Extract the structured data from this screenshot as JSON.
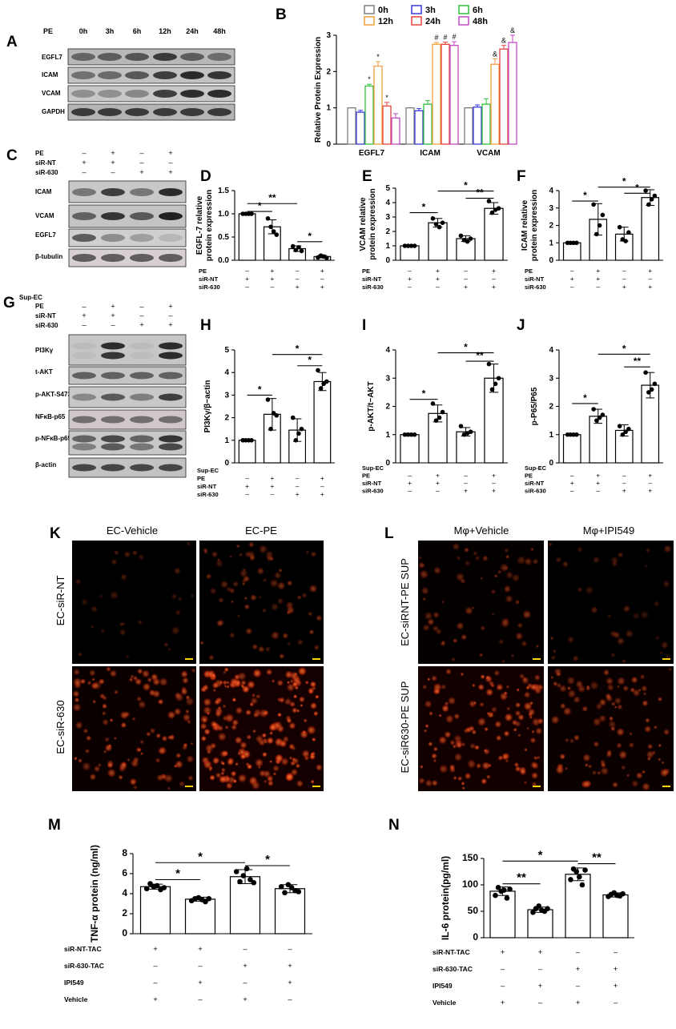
{
  "panel_letters": [
    "A",
    "B",
    "C",
    "D",
    "E",
    "F",
    "G",
    "H",
    "I",
    "J",
    "K",
    "L",
    "M",
    "N"
  ],
  "panelA": {
    "row_header": "PE",
    "timepoints": [
      "0h",
      "3h",
      "6h",
      "12h",
      "24h",
      "48h"
    ],
    "bands": [
      "EGFL7",
      "ICAM",
      "VCAM",
      "GAPDH"
    ]
  },
  "panelC": {
    "conditions": [
      {
        "label": "PE",
        "signs": [
          "–",
          "+",
          "–",
          "+"
        ]
      },
      {
        "label": "siR-NT",
        "signs": [
          "+",
          "+",
          "–",
          "–"
        ]
      },
      {
        "label": "siR-630",
        "signs": [
          "–",
          "–",
          "+",
          "+"
        ]
      }
    ],
    "bands": [
      "ICAM",
      "VCAM",
      "EGFL7",
      "β-tubulin"
    ]
  },
  "panelG": {
    "conditions": [
      {
        "label": "Sup-EC",
        "signs": [
          "",
          "",
          "",
          ""
        ]
      },
      {
        "label": "PE",
        "signs": [
          "–",
          "+",
          "–",
          "+"
        ]
      },
      {
        "label": "siR-NT",
        "signs": [
          "+",
          "+",
          "–",
          "–"
        ]
      },
      {
        "label": "siR-630",
        "signs": [
          "–",
          "–",
          "+",
          "+"
        ]
      }
    ],
    "bands": [
      "PI3Kγ",
      "t-AKT",
      "p-AKT-S473",
      "NFκB-p65",
      "p-NFκB-p65",
      "β-actin"
    ]
  },
  "panelK": {
    "col_titles": [
      "EC-Vehicle",
      "EC-PE"
    ],
    "row_titles": [
      "EC-siR-NT",
      "EC-siR-630"
    ]
  },
  "panelL": {
    "col_titles": [
      "Mφ+Vehicle",
      "Mφ+IPI549"
    ],
    "row_titles": [
      "EC-siRNT-PE SUP",
      "EC-siR630-PE SUP"
    ]
  },
  "chart_data": [
    {
      "panel": "B",
      "type": "bar",
      "ylabel": "Relative Protein Expression",
      "ylim": [
        0,
        3
      ],
      "yticks": [
        0,
        1,
        2,
        3
      ],
      "categories": [
        "EGFL7",
        "ICAM",
        "VCAM"
      ],
      "series": [
        {
          "name": "0h",
          "color": "#7f7f7f",
          "values": [
            1.0,
            1.0,
            1.0
          ],
          "err": [
            0,
            0,
            0
          ],
          "mark": [
            "",
            "",
            ""
          ]
        },
        {
          "name": "3h",
          "color": "#3a3ad8",
          "values": [
            0.88,
            0.92,
            1.02
          ],
          "err": [
            0.05,
            0.06,
            0.06
          ],
          "mark": [
            "",
            "",
            ""
          ]
        },
        {
          "name": "6h",
          "color": "#2fbf3a",
          "values": [
            1.6,
            1.1,
            1.1
          ],
          "err": [
            0.05,
            0.1,
            0.15
          ],
          "mark": [
            "*",
            "",
            ""
          ]
        },
        {
          "name": "12h",
          "color": "#f0a03c",
          "values": [
            2.15,
            2.75,
            2.2
          ],
          "err": [
            0.12,
            0.05,
            0.15
          ],
          "mark": [
            "*",
            "#",
            "&"
          ]
        },
        {
          "name": "24h",
          "color": "#e8413c",
          "values": [
            1.05,
            2.75,
            2.62
          ],
          "err": [
            0.1,
            0.06,
            0.1
          ],
          "mark": [
            "*",
            "#",
            "&"
          ]
        },
        {
          "name": "48h",
          "color": "#c24bc2",
          "values": [
            0.72,
            2.72,
            2.8
          ],
          "err": [
            0.12,
            0.1,
            0.2
          ],
          "mark": [
            "",
            "#",
            "&"
          ]
        }
      ],
      "legend_position": "top"
    },
    {
      "panel": "D",
      "type": "bar",
      "ylabel": [
        "EGFL-7 relative",
        "protein expression"
      ],
      "ylim": [
        0,
        1.5
      ],
      "yticks": [
        "0.0",
        "0.5",
        "1.0",
        "1.5"
      ],
      "values": [
        1.0,
        0.72,
        0.25,
        0.08
      ],
      "err": [
        0.01,
        0.15,
        0.06,
        0.03
      ],
      "points": [
        [
          1.0,
          1.0,
          1.0,
          1.0
        ],
        [
          0.9,
          0.72,
          0.62,
          0.55
        ],
        [
          0.3,
          0.22,
          0.28,
          0.2
        ],
        [
          0.06,
          0.1,
          0.08,
          0.05
        ]
      ],
      "sig": [
        {
          "from": 0,
          "to": 1,
          "label": "*",
          "level": 1.05
        },
        {
          "from": 0,
          "to": 2,
          "label": "**",
          "level": 1.22
        },
        {
          "from": 2,
          "to": 3,
          "label": "*",
          "level": 0.4
        }
      ],
      "rows": [
        {
          "label": "PE",
          "signs": [
            "–",
            "+",
            "–",
            "+"
          ]
        },
        {
          "label": "siR-NT",
          "signs": [
            "+",
            "+",
            "–",
            "–"
          ]
        },
        {
          "label": "siR-630",
          "signs": [
            "–",
            "–",
            "+",
            "+"
          ]
        }
      ]
    },
    {
      "panel": "E",
      "type": "bar",
      "ylabel": [
        "VCAM relative",
        "protein expression"
      ],
      "ylim": [
        0,
        5
      ],
      "yticks": [
        "0",
        "1",
        "2",
        "3",
        "4",
        "5"
      ],
      "values": [
        1.0,
        2.6,
        1.5,
        3.6
      ],
      "err": [
        0.01,
        0.3,
        0.2,
        0.4
      ],
      "points": [
        [
          1,
          1,
          1,
          1
        ],
        [
          2.9,
          2.5,
          2.3,
          2.6
        ],
        [
          1.7,
          1.4,
          1.3,
          1.5
        ],
        [
          4.1,
          3.3,
          3.5,
          3.6
        ]
      ],
      "sig": [
        {
          "from": 0,
          "to": 1,
          "label": "*",
          "level": 3.3
        },
        {
          "from": 2,
          "to": 3,
          "label": "**",
          "level": 4.3
        },
        {
          "from": 1,
          "to": 3,
          "label": "*",
          "level": 4.8
        }
      ],
      "rows": [
        {
          "label": "PE",
          "signs": [
            "–",
            "+",
            "–",
            "+"
          ]
        },
        {
          "label": "siR-NT",
          "signs": [
            "+",
            "+",
            "–",
            "–"
          ]
        },
        {
          "label": "siR-630",
          "signs": [
            "–",
            "–",
            "+",
            "+"
          ]
        }
      ]
    },
    {
      "panel": "F",
      "type": "bar",
      "ylabel": [
        "ICAM relative",
        "protein expression"
      ],
      "ylim": [
        0,
        4
      ],
      "yticks": [
        "0",
        "1",
        "2",
        "3",
        "4"
      ],
      "values": [
        1.0,
        2.35,
        1.5,
        3.6
      ],
      "err": [
        0.01,
        0.9,
        0.4,
        0.45
      ],
      "points": [
        [
          1,
          1,
          1,
          1
        ],
        [
          3.2,
          1.5,
          2.0,
          2.6
        ],
        [
          1.9,
          1.2,
          1.1,
          1.6
        ],
        [
          4.0,
          3.2,
          3.5,
          3.7
        ]
      ],
      "sig": [
        {
          "from": 0,
          "to": 1,
          "label": "*",
          "level": 3.4
        },
        {
          "from": 2,
          "to": 3,
          "label": "*",
          "level": 3.85
        },
        {
          "from": 1,
          "to": 3,
          "label": "*",
          "level": 4.2
        }
      ],
      "rows": [
        {
          "label": "PE",
          "signs": [
            "–",
            "+",
            "–",
            "+"
          ]
        },
        {
          "label": "siR-NT",
          "signs": [
            "+",
            "+",
            "–",
            "–"
          ]
        },
        {
          "label": "siR-630",
          "signs": [
            "–",
            "–",
            "+",
            "+"
          ]
        }
      ]
    },
    {
      "panel": "H",
      "type": "bar",
      "ylabel": [
        "PI3Kγ/β−actin"
      ],
      "ylim": [
        0,
        5
      ],
      "yticks": [
        "0",
        "1",
        "2",
        "3",
        "4",
        "5"
      ],
      "values": [
        1.0,
        2.15,
        1.45,
        3.6
      ],
      "err": [
        0.01,
        0.7,
        0.5,
        0.4
      ],
      "points": [
        [
          1,
          1,
          1,
          1
        ],
        [
          2.8,
          1.5,
          2.2,
          2.1
        ],
        [
          2.0,
          1.0,
          1.3,
          1.5
        ],
        [
          4.1,
          3.3,
          3.5,
          3.6
        ]
      ],
      "sig": [
        {
          "from": 0,
          "to": 1,
          "label": "*",
          "level": 3.0
        },
        {
          "from": 2,
          "to": 3,
          "label": "*",
          "level": 4.3
        },
        {
          "from": 1,
          "to": 3,
          "label": "*",
          "level": 4.8
        }
      ],
      "rows": [
        {
          "label": "Sup-EC",
          "signs": [
            "",
            "",
            "",
            ""
          ]
        },
        {
          "label": "PE",
          "signs": [
            "–",
            "+",
            "–",
            "+"
          ]
        },
        {
          "label": "siR-NT",
          "signs": [
            "+",
            "+",
            "–",
            "–"
          ]
        },
        {
          "label": "siR-630",
          "signs": [
            "–",
            "–",
            "+",
            "+"
          ]
        }
      ]
    },
    {
      "panel": "I",
      "type": "bar",
      "ylabel": [
        "p-AKT/t−AKT"
      ],
      "ylim": [
        0,
        4
      ],
      "yticks": [
        "0",
        "1",
        "2",
        "3",
        "4"
      ],
      "values": [
        1.0,
        1.75,
        1.1,
        3.0
      ],
      "err": [
        0.01,
        0.3,
        0.15,
        0.5
      ],
      "points": [
        [
          1,
          1,
          1,
          1
        ],
        [
          2.1,
          1.5,
          1.6,
          1.8
        ],
        [
          1.3,
          1.0,
          1.05,
          1.1
        ],
        [
          3.5,
          2.6,
          2.8,
          3.0
        ]
      ],
      "sig": [
        {
          "from": 0,
          "to": 1,
          "label": "*",
          "level": 2.25
        },
        {
          "from": 2,
          "to": 3,
          "label": "**",
          "level": 3.6
        },
        {
          "from": 1,
          "to": 3,
          "label": "*",
          "level": 3.9
        }
      ],
      "rows": [
        {
          "label": "Sup-EC",
          "signs": [
            "",
            "",
            "",
            ""
          ]
        },
        {
          "label": "PE",
          "signs": [
            "–",
            "+",
            "–",
            "+"
          ]
        },
        {
          "label": "siR-NT",
          "signs": [
            "+",
            "+",
            "–",
            "–"
          ]
        },
        {
          "label": "siR-630",
          "signs": [
            "–",
            "–",
            "+",
            "+"
          ]
        }
      ]
    },
    {
      "panel": "J",
      "type": "bar",
      "ylabel": [
        "p-P65/P65"
      ],
      "ylim": [
        0,
        4
      ],
      "yticks": [
        "0",
        "1",
        "2",
        "3",
        "4"
      ],
      "values": [
        1.0,
        1.65,
        1.15,
        2.75
      ],
      "err": [
        0.01,
        0.25,
        0.2,
        0.45
      ],
      "points": [
        [
          1,
          1,
          1,
          1
        ],
        [
          1.9,
          1.5,
          1.6,
          1.7
        ],
        [
          1.3,
          1.0,
          1.1,
          1.2
        ],
        [
          3.2,
          2.5,
          2.6,
          2.8
        ]
      ],
      "sig": [
        {
          "from": 0,
          "to": 1,
          "label": "*",
          "level": 2.1
        },
        {
          "from": 2,
          "to": 3,
          "label": "**",
          "level": 3.4
        },
        {
          "from": 1,
          "to": 3,
          "label": "*",
          "level": 3.85
        }
      ],
      "rows": [
        {
          "label": "Sup-EC",
          "signs": [
            "",
            "",
            "",
            ""
          ]
        },
        {
          "label": "PE",
          "signs": [
            "–",
            "+",
            "–",
            "+"
          ]
        },
        {
          "label": "siR-NT",
          "signs": [
            "+",
            "+",
            "–",
            "–"
          ]
        },
        {
          "label": "siR-630",
          "signs": [
            "–",
            "–",
            "+",
            "+"
          ]
        }
      ]
    },
    {
      "panel": "M",
      "type": "bar",
      "ylabel": [
        "TNF-α protein (ng/ml)"
      ],
      "ylim": [
        0,
        8
      ],
      "yticks": [
        "0",
        "2",
        "4",
        "6",
        "8"
      ],
      "values": [
        4.7,
        3.45,
        5.7,
        4.5
      ],
      "err": [
        0.25,
        0.2,
        0.7,
        0.4
      ],
      "points": [
        [
          4.5,
          5.0,
          4.7,
          4.8,
          4.4,
          4.6
        ],
        [
          3.3,
          3.5,
          3.6,
          3.4,
          3.2,
          3.5
        ],
        [
          6.2,
          5.2,
          5.8,
          6.5,
          5.4,
          5.1
        ],
        [
          4.7,
          4.1,
          4.9,
          4.6,
          4.3,
          4.2
        ]
      ],
      "sig": [
        {
          "from": 0,
          "to": 1,
          "label": "*",
          "level": 5.4
        },
        {
          "from": 0,
          "to": 2,
          "label": "*",
          "level": 7.1
        },
        {
          "from": 2,
          "to": 3,
          "label": "*",
          "level": 6.8
        }
      ],
      "rows": [
        {
          "label": "siR-NT-TAC",
          "signs": [
            "+",
            "+",
            "–",
            "–"
          ]
        },
        {
          "label": "siR-630-TAC",
          "signs": [
            "–",
            "–",
            "+",
            "+"
          ]
        },
        {
          "label": "IPI549",
          "signs": [
            "–",
            "+",
            "–",
            "+"
          ]
        },
        {
          "label": "Vehicle",
          "signs": [
            "+",
            "–",
            "+",
            "–"
          ]
        }
      ]
    },
    {
      "panel": "N",
      "type": "bar",
      "ylabel": [
        "IL-6 protein(pg/ml)"
      ],
      "ylim": [
        0,
        150
      ],
      "yticks": [
        "0",
        "50",
        "100",
        "150"
      ],
      "values": [
        88,
        53,
        120,
        81
      ],
      "err": [
        8,
        5,
        12,
        4
      ],
      "points": [
        [
          80,
          95,
          88,
          90,
          75,
          92
        ],
        [
          48,
          55,
          60,
          52,
          50,
          55
        ],
        [
          110,
          130,
          125,
          115,
          100,
          128
        ],
        [
          78,
          82,
          85,
          80,
          79,
          83
        ]
      ],
      "sig": [
        {
          "from": 0,
          "to": 1,
          "label": "**",
          "level": 102
        },
        {
          "from": 0,
          "to": 2,
          "label": "*",
          "level": 145
        },
        {
          "from": 2,
          "to": 3,
          "label": "**",
          "level": 140
        }
      ],
      "rows": [
        {
          "label": "siR-NT-TAC",
          "signs": [
            "+",
            "+",
            "–",
            "–"
          ]
        },
        {
          "label": "siR-630-TAC",
          "signs": [
            "–",
            "–",
            "+",
            "+"
          ]
        },
        {
          "label": "IPI549",
          "signs": [
            "–",
            "+",
            "–",
            "+"
          ]
        },
        {
          "label": "Vehicle",
          "signs": [
            "+",
            "–",
            "+",
            "–"
          ]
        }
      ]
    }
  ]
}
